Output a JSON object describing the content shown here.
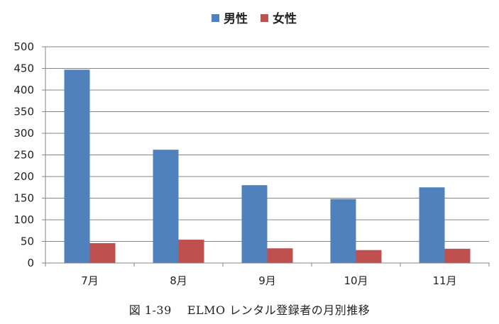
{
  "chart_data": {
    "type": "bar",
    "categories": [
      "7月",
      "8月",
      "9月",
      "10月",
      "11月"
    ],
    "series": [
      {
        "name": "男性",
        "values": [
          447,
          262,
          180,
          148,
          175
        ],
        "color": "#4F81BD"
      },
      {
        "name": "女性",
        "values": [
          46,
          54,
          34,
          30,
          33
        ],
        "color": "#C0504D"
      }
    ],
    "ylim": [
      0,
      500
    ],
    "yticks": [
      0,
      50,
      100,
      150,
      200,
      250,
      300,
      350,
      400,
      450,
      500
    ],
    "grid": true,
    "legend_position": "top-center"
  },
  "caption": "図 1-39　 ELMO レンタル登録者の月別推移"
}
